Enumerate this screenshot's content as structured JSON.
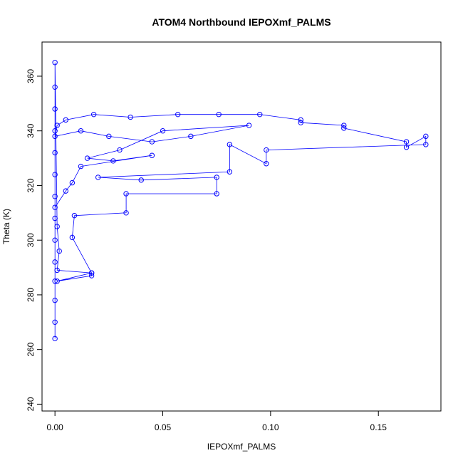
{
  "chart_data": {
    "type": "scatter",
    "title": "ATOM4 Northbound IEPOXmf_PALMS",
    "xlabel": "IEPOXmf_PALMS",
    "ylabel": "Theta (K)",
    "xlim": [
      -0.006,
      0.179
    ],
    "ylim": [
      237.5,
      372.5
    ],
    "xticks": [
      0.0,
      0.05,
      0.1,
      0.15
    ],
    "xtick_labels": [
      "0.00",
      "0.05",
      "0.10",
      "0.15"
    ],
    "yticks": [
      240,
      260,
      280,
      300,
      320,
      340,
      360
    ],
    "ytick_labels": [
      "240",
      "260",
      "280",
      "300",
      "320",
      "340",
      "360"
    ],
    "grid": false,
    "legend": "none",
    "color": "#0000ff",
    "marker": "open-circle",
    "connected": true,
    "series": [
      {
        "points": [
          [
            0.0,
            264
          ],
          [
            0.0,
            270
          ],
          [
            0.0,
            278
          ],
          [
            0.0,
            285
          ],
          [
            0.0,
            292
          ],
          [
            0.0,
            300
          ],
          [
            0.0,
            308
          ],
          [
            0.0,
            316
          ],
          [
            0.0,
            324
          ],
          [
            0.0,
            332
          ],
          [
            0.0,
            340
          ],
          [
            0.0,
            348
          ],
          [
            0.0,
            356
          ],
          [
            0.0,
            365
          ],
          [
            0.001,
            305
          ],
          [
            0.002,
            296
          ],
          [
            0.001,
            289
          ],
          [
            0.017,
            288
          ],
          [
            0.017,
            287
          ],
          [
            0.001,
            285
          ],
          [
            0.017,
            288
          ],
          [
            0.008,
            301
          ],
          [
            0.009,
            309
          ],
          [
            0.033,
            310
          ],
          [
            0.033,
            317
          ],
          [
            0.075,
            317
          ],
          [
            0.075,
            323
          ],
          [
            0.04,
            322
          ],
          [
            0.02,
            323
          ],
          [
            0.081,
            325
          ],
          [
            0.081,
            335
          ],
          [
            0.098,
            328
          ],
          [
            0.098,
            333
          ],
          [
            0.172,
            335
          ],
          [
            0.172,
            338
          ],
          [
            0.163,
            334
          ],
          [
            0.163,
            336
          ],
          [
            0.134,
            341
          ],
          [
            0.134,
            342
          ],
          [
            0.114,
            343
          ],
          [
            0.114,
            344
          ],
          [
            0.095,
            346
          ],
          [
            0.076,
            346
          ],
          [
            0.057,
            346
          ],
          [
            0.035,
            345
          ],
          [
            0.018,
            346
          ],
          [
            0.005,
            344
          ],
          [
            0.001,
            342
          ],
          [
            0.0,
            338
          ],
          [
            0.012,
            340
          ],
          [
            0.025,
            338
          ],
          [
            0.045,
            336
          ],
          [
            0.063,
            338
          ],
          [
            0.09,
            342
          ],
          [
            0.05,
            340
          ],
          [
            0.03,
            333
          ],
          [
            0.015,
            330
          ],
          [
            0.027,
            329
          ],
          [
            0.045,
            331
          ],
          [
            0.012,
            327
          ],
          [
            0.008,
            321
          ],
          [
            0.005,
            318
          ],
          [
            0.0,
            312
          ]
        ]
      }
    ]
  }
}
